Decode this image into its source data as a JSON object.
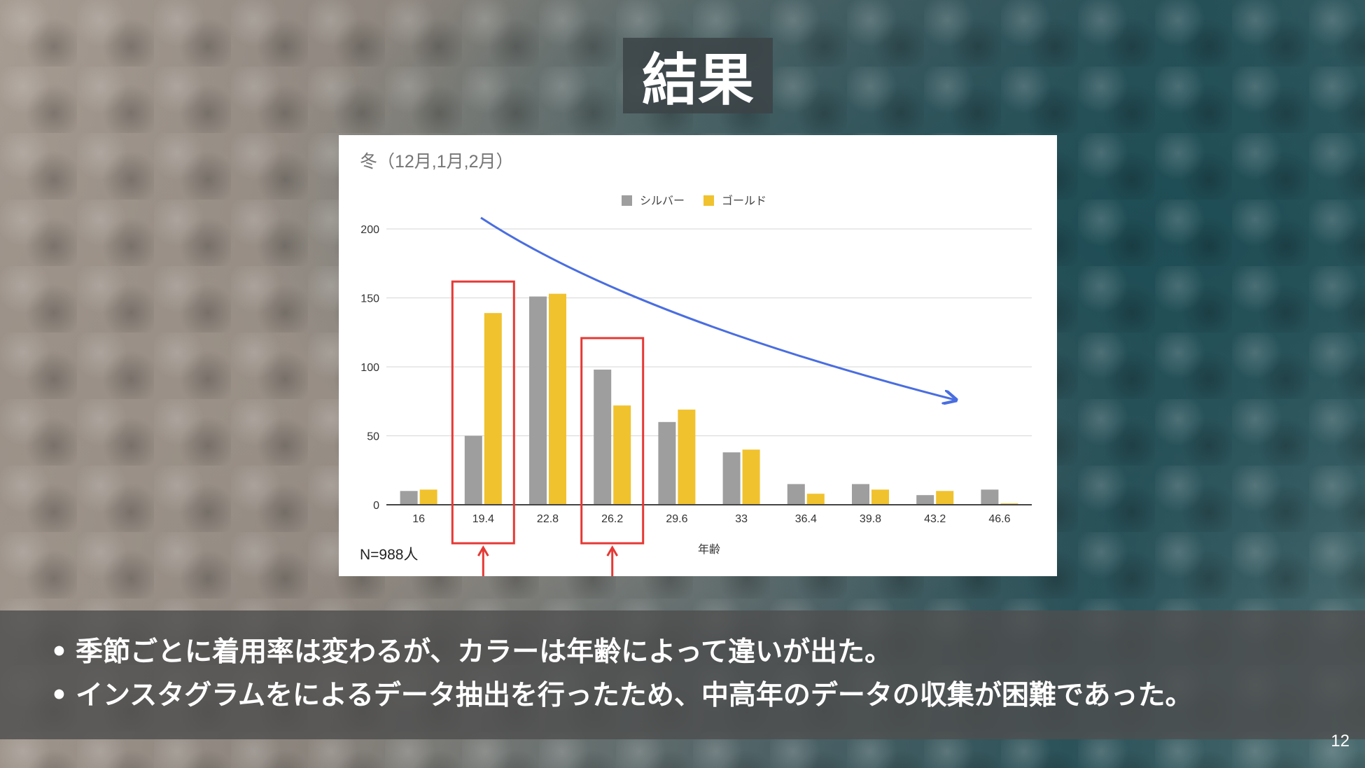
{
  "slide": {
    "title": "結果",
    "bullets": [
      "季節ごとに着用率は変わるが、カラーは年齢によって違いが出た。",
      "インスタグラムをによるデータ抽出を行ったため、中高年のデータの収集が困難であった。"
    ],
    "page_number": "12",
    "bullet_symbol": "•"
  },
  "chart_data": {
    "type": "bar",
    "title": "冬（12月,1月,2月）",
    "xlabel": "年齢",
    "ylabel": "",
    "note": "N=988人",
    "categories": [
      "16",
      "19.4",
      "22.8",
      "26.2",
      "29.6",
      "33",
      "36.4",
      "39.8",
      "43.2",
      "46.6"
    ],
    "series": [
      {
        "name": "シルバー",
        "color": "#9e9e9e",
        "values": [
          10,
          50,
          151,
          98,
          60,
          38,
          15,
          15,
          7,
          11
        ]
      },
      {
        "name": "ゴールド",
        "color": "#f0c22e",
        "values": [
          11,
          139,
          153,
          72,
          69,
          40,
          8,
          11,
          10,
          1
        ]
      }
    ],
    "ylim": [
      0,
      200
    ],
    "yticks": [
      0,
      50,
      100,
      150,
      200
    ],
    "grid": true,
    "legend_position": "top-center",
    "highlighted_categories": [
      "19.4",
      "26.2"
    ],
    "highlight_color": "#e53935",
    "trend_arrow_color": "#4a6ee0"
  }
}
